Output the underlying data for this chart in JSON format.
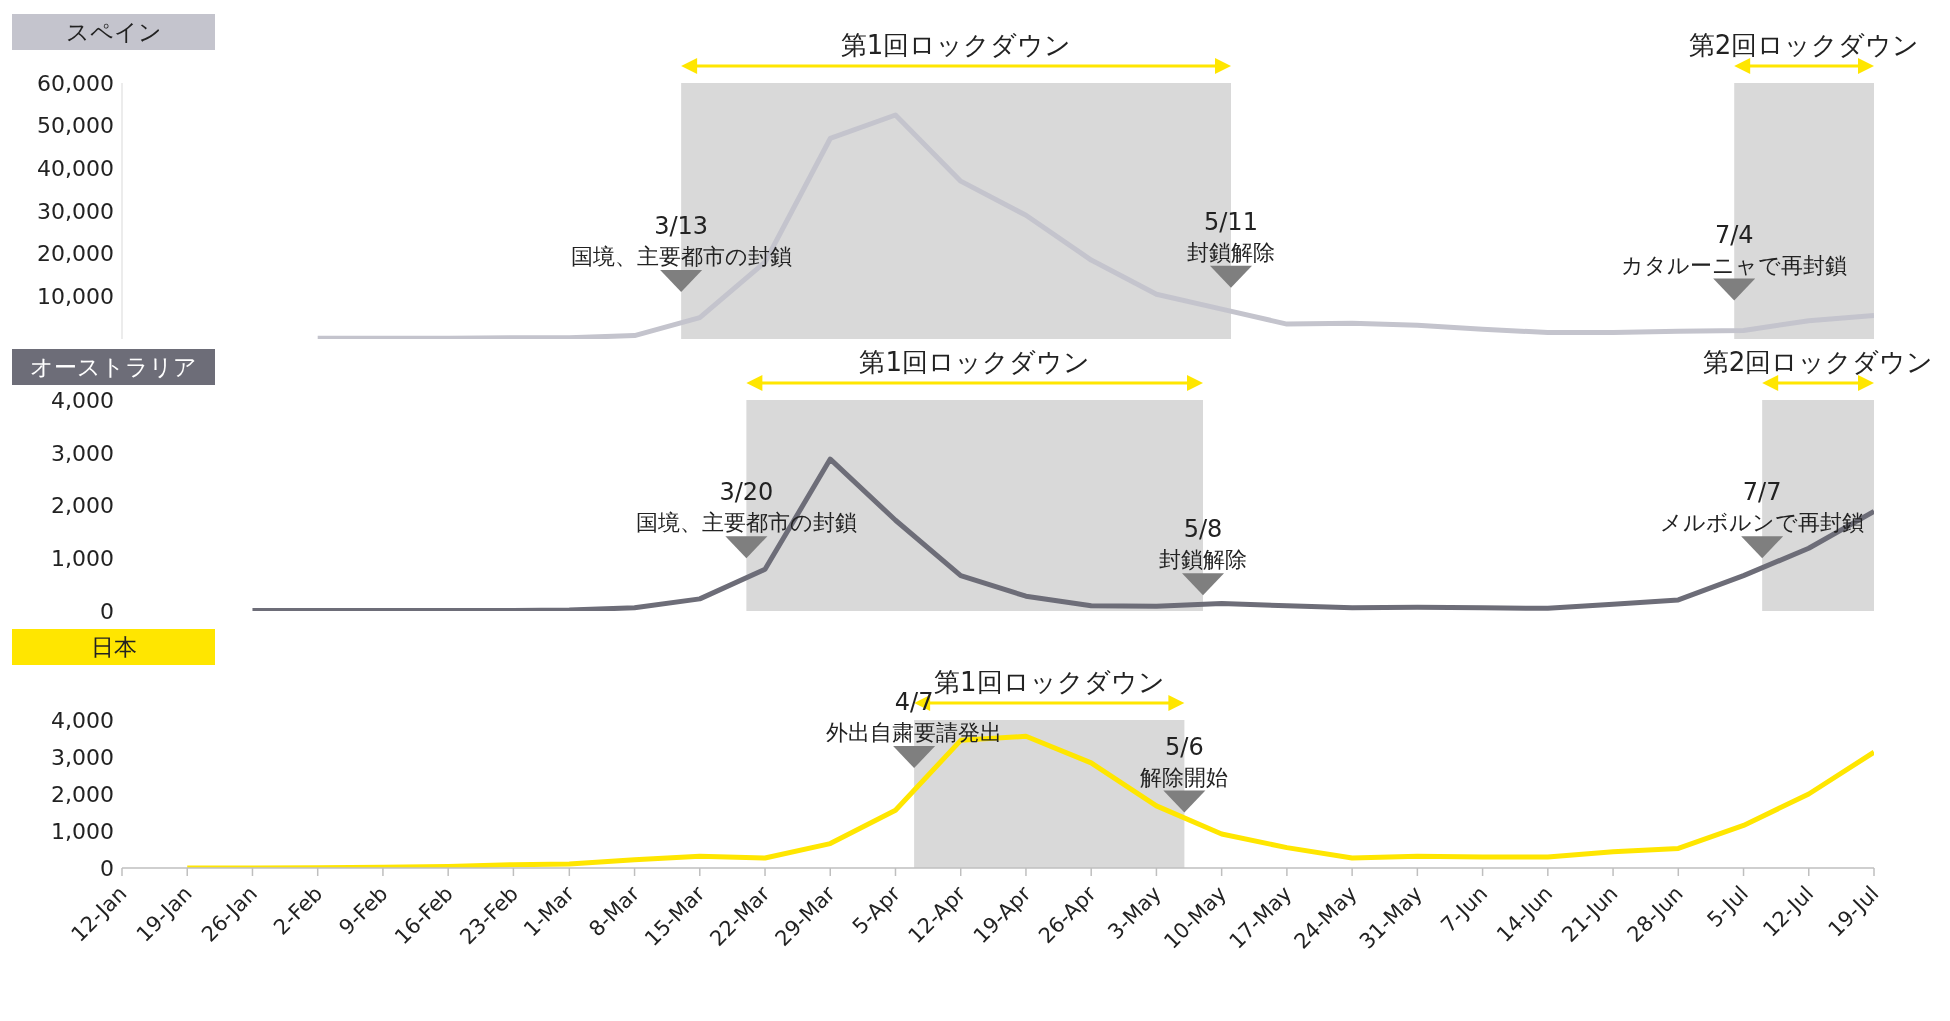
{
  "chart_data": [
    {
      "type": "line",
      "title": "スペイン",
      "tick_labels": "y",
      "xlim": [
        "--01-12",
        "--07-19"
      ],
      "ylim": [
        0,
        60000
      ],
      "yticks": [
        {
          "value": 10000,
          "label": "10,000"
        },
        {
          "value": 20000,
          "label": "20,000"
        },
        {
          "value": 30000,
          "label": "30,000"
        },
        {
          "value": 40000,
          "label": "40,000"
        },
        {
          "value": 50000,
          "label": "50,000"
        },
        {
          "value": 60000,
          "label": "60,000"
        }
      ],
      "series": [
        {
          "color": "#c4c4cd",
          "x": [
            "--02-02",
            "--02-09",
            "--02-16",
            "--02-23",
            "--03-01",
            "--03-08",
            "--03-15",
            "--03-22",
            "--03-29",
            "--04-05",
            "--04-12",
            "--04-19",
            "--04-26",
            "--05-03",
            "--05-10",
            "--05-17",
            "--05-24",
            "--05-31",
            "--06-07",
            "--06-14",
            "--06-21",
            "--06-28",
            "--07-05",
            "--07-12",
            "--07-19"
          ],
          "values": [
            200,
            200,
            200,
            300,
            300,
            800,
            5000,
            18000,
            47000,
            52500,
            37000,
            29000,
            18500,
            10500,
            7000,
            3500,
            3700,
            3200,
            2300,
            1500,
            1500,
            1800,
            2000,
            4300,
            5500
          ]
        }
      ],
      "bands": [
        {
          "axis": "x",
          "from": "--03-13",
          "to": "--05-11",
          "label": "第1回ロックダウン",
          "color": "#d9d9d9"
        },
        {
          "axis": "x",
          "from": "--07-04",
          "to": "--07-19",
          "label": "第2回ロックダウン",
          "color": "#d9d9d9"
        }
      ],
      "annotations": [
        {
          "text": "3/13\n国境、主要都市の封鎖",
          "x": "--03-13",
          "y": 11000
        },
        {
          "text": "5/11\n封鎖解除",
          "x": "--05-11",
          "y": 12000
        },
        {
          "text": "7/4\nカタルーニャで再封鎖",
          "x": "--07-04",
          "y": 9000
        }
      ]
    },
    {
      "type": "line",
      "title": "オーストラリア",
      "tick_labels": "y",
      "xlim": [
        "--01-12",
        "--07-19"
      ],
      "ylim": [
        0,
        4000
      ],
      "yticks": [
        0,
        {
          "value": 1000,
          "label": "1,000"
        },
        {
          "value": 2000,
          "label": "2,000"
        },
        {
          "value": 3000,
          "label": "3,000"
        },
        {
          "value": 4000,
          "label": "4,000"
        }
      ],
      "series": [
        {
          "color": "#6d6d78",
          "x": [
            "--01-26",
            "--02-02",
            "--02-09",
            "--02-16",
            "--02-23",
            "--03-01",
            "--03-08",
            "--03-15",
            "--03-22",
            "--03-29",
            "--04-05",
            "--04-12",
            "--04-19",
            "--04-26",
            "--05-03",
            "--05-10",
            "--05-17",
            "--05-24",
            "--05-31",
            "--06-07",
            "--06-14",
            "--06-21",
            "--06-28",
            "--07-05",
            "--07-12",
            "--07-19"
          ],
          "values": [
            10,
            10,
            10,
            10,
            10,
            20,
            60,
            230,
            790,
            2880,
            1720,
            670,
            280,
            100,
            90,
            140,
            100,
            60,
            70,
            60,
            50,
            130,
            210,
            670,
            1190,
            1890
          ]
        }
      ],
      "bands": [
        {
          "axis": "x",
          "from": "--03-20",
          "to": "--05-08",
          "label": "第1回ロックダウン",
          "color": "#d9d9d9"
        },
        {
          "axis": "x",
          "from": "--07-07",
          "to": "--07-19",
          "label": "第2回ロックダウン",
          "color": "#d9d9d9"
        }
      ],
      "annotations": [
        {
          "text": "3/20\n国境、主要都市の封鎖",
          "x": "--03-20",
          "y": 1000
        },
        {
          "text": "5/8\n封鎖解除",
          "x": "--05-08",
          "y": 300
        },
        {
          "text": "7/7\nメルボルンで再封鎖",
          "x": "--07-07",
          "y": 1000
        }
      ]
    },
    {
      "type": "line",
      "title": "日本",
      "xlim": [
        "--01-12",
        "--07-19"
      ],
      "ylim": [
        0,
        4000
      ],
      "yticks": [
        0,
        {
          "value": 1000,
          "label": "1,000"
        },
        {
          "value": 2000,
          "label": "2,000"
        },
        {
          "value": 3000,
          "label": "3,000"
        },
        {
          "value": 4000,
          "label": "4,000"
        }
      ],
      "xticks": [
        {
          "value": "--01-12",
          "label": "12-Jan"
        },
        {
          "value": "--01-19",
          "label": "19-Jan"
        },
        {
          "value": "--01-26",
          "label": "26-Jan"
        },
        {
          "value": "--02-02",
          "label": "2-Feb"
        },
        {
          "value": "--02-09",
          "label": "9-Feb"
        },
        {
          "value": "--02-16",
          "label": "16-Feb"
        },
        {
          "value": "--02-23",
          "label": "23-Feb"
        },
        {
          "value": "--03-01",
          "label": "1-Mar"
        },
        {
          "value": "--03-08",
          "label": "8-Mar"
        },
        {
          "value": "--03-15",
          "label": "15-Mar"
        },
        {
          "value": "--03-22",
          "label": "22-Mar"
        },
        {
          "value": "--03-29",
          "label": "29-Mar"
        },
        {
          "value": "--04-05",
          "label": "5-Apr"
        },
        {
          "value": "--04-12",
          "label": "12-Apr"
        },
        {
          "value": "--04-19",
          "label": "19-Apr"
        },
        {
          "value": "--04-26",
          "label": "26-Apr"
        },
        {
          "value": "--05-03",
          "label": "3-May"
        },
        {
          "value": "--05-10",
          "label": "10-May"
        },
        {
          "value": "--05-17",
          "label": "17-May"
        },
        {
          "value": "--05-24",
          "label": "24-May"
        },
        {
          "value": "--05-31",
          "label": "31-May"
        },
        {
          "value": "--06-07",
          "label": "7-Jun"
        },
        {
          "value": "--06-14",
          "label": "14-Jun"
        },
        {
          "value": "--06-21",
          "label": "21-Jun"
        },
        {
          "value": "--06-28",
          "label": "28-Jun"
        },
        {
          "value": "--07-05",
          "label": "5-Jul"
        },
        {
          "value": "--07-12",
          "label": "12-Jul"
        },
        {
          "value": "--07-19",
          "label": "19-Jul"
        }
      ],
      "series": [
        {
          "color": "#ffe600",
          "x": [
            "--01-19",
            "--01-26",
            "--02-02",
            "--02-09",
            "--02-16",
            "--02-23",
            "--03-01",
            "--03-08",
            "--03-15",
            "--03-22",
            "--03-29",
            "--04-05",
            "--04-12",
            "--04-19",
            "--04-26",
            "--05-03",
            "--05-10",
            "--05-17",
            "--05-24",
            "--05-31",
            "--06-07",
            "--06-14",
            "--06-21",
            "--06-28",
            "--07-05",
            "--07-12",
            "--07-19"
          ],
          "values": [
            0,
            0,
            10,
            20,
            40,
            90,
            110,
            220,
            320,
            270,
            660,
            1560,
            3450,
            3560,
            2840,
            1680,
            920,
            550,
            270,
            320,
            300,
            300,
            440,
            530,
            1150,
            2000,
            3130
          ]
        }
      ],
      "bands": [
        {
          "axis": "x",
          "from": "--04-07",
          "to": "--05-06",
          "label": "第1回ロックダウン",
          "color": "#d9d9d9"
        }
      ],
      "annotations": [
        {
          "text": "4/7\n外出自粛要請発出",
          "x": "--04-07",
          "y": 2700
        },
        {
          "text": "5/6\n解除開始",
          "x": "--05-06",
          "y": 1500
        }
      ]
    }
  ]
}
